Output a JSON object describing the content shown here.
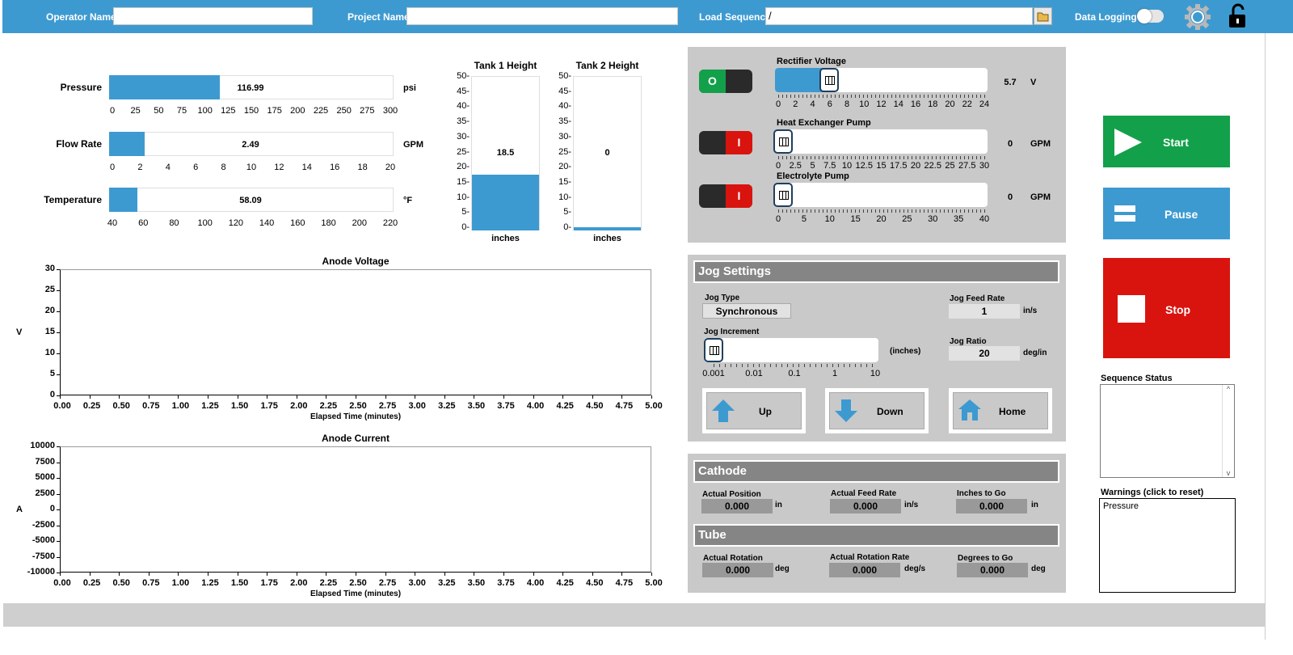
{
  "topbar": {
    "operator_label": "Operator Name",
    "operator_value": "",
    "project_label": "Project Name",
    "project_value": "",
    "sequence_label": "Load Sequence",
    "sequence_value": "/",
    "logging_label": "Data Logging"
  },
  "gauges": [
    {
      "label": "Pressure",
      "value": "116.99",
      "unit": "psi",
      "fraction": 0.39,
      "ticks": [
        "0",
        "25",
        "50",
        "75",
        "100",
        "125",
        "150",
        "175",
        "200",
        "225",
        "250",
        "275",
        "300"
      ]
    },
    {
      "label": "Flow Rate",
      "value": "2.49",
      "unit": "GPM",
      "fraction": 0.1245,
      "ticks": [
        "0",
        "2",
        "4",
        "6",
        "8",
        "10",
        "12",
        "14",
        "16",
        "18",
        "20"
      ]
    },
    {
      "label": "Temperature",
      "value": "58.09",
      "unit": "°F",
      "fraction": 0.1,
      "ticks": [
        "40",
        "60",
        "80",
        "100",
        "120",
        "140",
        "160",
        "180",
        "200",
        "220"
      ]
    }
  ],
  "tanks": [
    {
      "title": "Tank 1 Height",
      "value": "18.5",
      "unit": "inches",
      "fraction": 0.37
    },
    {
      "title": "Tank 2 Height",
      "value": "0",
      "unit": "inches",
      "fraction": 0.0
    }
  ],
  "tank_ticks": [
    "50-",
    "45-",
    "40-",
    "35-",
    "30-",
    "25-",
    "20-",
    "15-",
    "10-",
    "5-",
    "0-"
  ],
  "sliders": [
    {
      "label": "Rectifier Voltage",
      "value": "5.7",
      "unit": "V",
      "on": true,
      "fraction": 0.2375,
      "ticks": [
        "0",
        "2",
        "4",
        "6",
        "8",
        "10",
        "12",
        "14",
        "16",
        "18",
        "20",
        "22",
        "24"
      ]
    },
    {
      "label": "Heat Exchanger Pump",
      "value": "0",
      "unit": "GPM",
      "on": false,
      "fraction": 0,
      "ticks": [
        "0",
        "2.5",
        "5",
        "7.5",
        "10",
        "12.5",
        "15",
        "17.5",
        "20",
        "22.5",
        "25",
        "27.5",
        "30"
      ]
    },
    {
      "label": "Electrolyte Pump",
      "value": "0",
      "unit": "GPM",
      "on": false,
      "fraction": 0,
      "ticks": [
        "0",
        "5",
        "10",
        "15",
        "20",
        "25",
        "30",
        "35",
        "40"
      ]
    }
  ],
  "switch_labels": {
    "on": "O",
    "off": "I"
  },
  "controls": {
    "start": "Start",
    "pause": "Pause",
    "stop": "Stop"
  },
  "jog": {
    "title": "Jog Settings",
    "type_label": "Jog Type",
    "type_value": "Synchronous",
    "feed_label": "Jog Feed Rate",
    "feed_value": "1",
    "feed_unit": "in/s",
    "increment_label": "Jog Increment",
    "increment_unit": "(inches)",
    "increment_ticks": [
      "0.001",
      "0.01",
      "0.1",
      "1",
      "10"
    ],
    "ratio_label": "Jog Ratio",
    "ratio_value": "20",
    "ratio_unit": "deg/in",
    "up": "Up",
    "down": "Down",
    "home": "Home"
  },
  "cathode": {
    "title": "Cathode",
    "pos_label": "Actual Position",
    "pos_value": "0.000",
    "pos_unit": "in",
    "feed_label": "Actual Feed Rate",
    "feed_value": "0.000",
    "feed_unit": "in/s",
    "togo_label": "Inches to Go",
    "togo_value": "0.000",
    "togo_unit": "in"
  },
  "tube": {
    "title": "Tube",
    "rot_label": "Actual Rotation",
    "rot_value": "0.000",
    "rot_unit": "deg",
    "rate_label": "Actual Rotation Rate",
    "rate_value": "0.000",
    "rate_unit": "deg/s",
    "togo_label": "Degrees to Go",
    "togo_value": "0.000",
    "togo_unit": "deg"
  },
  "status": {
    "sequence_label": "Sequence Status",
    "warnings_label": "Warnings (click to reset)",
    "warnings_text": "Pressure"
  },
  "chart_data": [
    {
      "type": "line",
      "title": "Anode Voltage",
      "xlabel": "Elapsed Time (minutes)",
      "ylabel": "V",
      "xlim": [
        0,
        5
      ],
      "ylim": [
        0,
        30
      ],
      "xticks": [
        "0.00",
        "0.25",
        "0.50",
        "0.75",
        "1.00",
        "1.25",
        "1.50",
        "1.75",
        "2.00",
        "2.25",
        "2.50",
        "2.75",
        "3.00",
        "3.25",
        "3.50",
        "3.75",
        "4.00",
        "4.25",
        "4.50",
        "4.75",
        "5.00"
      ],
      "yticks": [
        "30",
        "25",
        "20",
        "15",
        "10",
        "5",
        "0"
      ],
      "series": []
    },
    {
      "type": "line",
      "title": "Anode Current",
      "xlabel": "Elapsed Time (minutes)",
      "ylabel": "A",
      "xlim": [
        0,
        5
      ],
      "ylim": [
        -10000,
        10000
      ],
      "xticks": [
        "0.00",
        "0.25",
        "0.50",
        "0.75",
        "1.00",
        "1.25",
        "1.50",
        "1.75",
        "2.00",
        "2.25",
        "2.50",
        "2.75",
        "3.00",
        "3.25",
        "3.50",
        "3.75",
        "4.00",
        "4.25",
        "4.50",
        "4.75",
        "5.00"
      ],
      "yticks": [
        "10000",
        "7500",
        "5000",
        "2500",
        "0",
        "-2500",
        "-5000",
        "-7500",
        "-10000"
      ],
      "series": []
    }
  ],
  "colors": {
    "accent": "#3d9ad1",
    "start": "#13a04a",
    "pause": "#3d9ad1",
    "stop": "#d9140e",
    "panel": "#c9c9c9"
  }
}
